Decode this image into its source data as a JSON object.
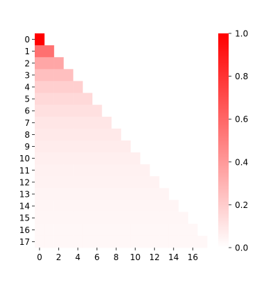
{
  "chart_data": {
    "type": "heatmap",
    "title": "",
    "xlabel": "",
    "ylabel": "",
    "layout": "lower-triangular",
    "rows": [
      "0",
      "1",
      "2",
      "3",
      "4",
      "5",
      "6",
      "7",
      "8",
      "9",
      "10",
      "11",
      "12",
      "13",
      "14",
      "15",
      "16",
      "17"
    ],
    "x_tick_labels": [
      "0",
      "2",
      "4",
      "6",
      "8",
      "10",
      "12",
      "14",
      "16"
    ],
    "x_tick_indices": [
      0,
      2,
      4,
      6,
      8,
      10,
      12,
      14,
      16
    ],
    "row_values": [
      1.0,
      0.56,
      0.35,
      0.25,
      0.19,
      0.15,
      0.12,
      0.1,
      0.085,
      0.073,
      0.064,
      0.056,
      0.05,
      0.045,
      0.04,
      0.037,
      0.033,
      0.031
    ],
    "colorscale": {
      "low": "#ffffff",
      "high": "#ff0000",
      "vmin": 0.0,
      "vmax": 1.0
    },
    "colorbar": {
      "ticks": [
        "0.0",
        "0.2",
        "0.4",
        "0.6",
        "0.8",
        "1.0"
      ],
      "tick_values": [
        0.0,
        0.2,
        0.4,
        0.6,
        0.8,
        1.0
      ]
    }
  }
}
